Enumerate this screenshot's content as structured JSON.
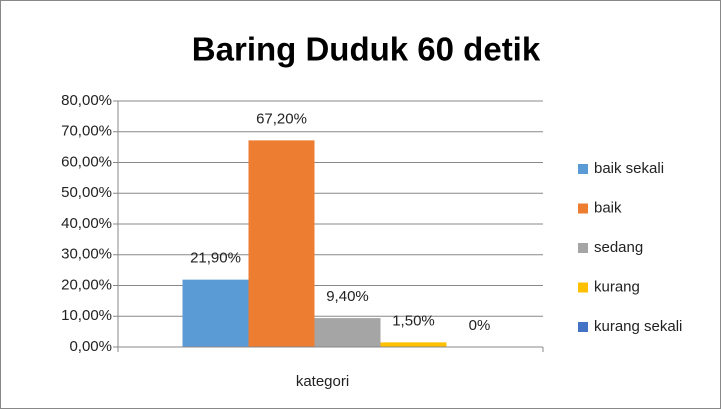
{
  "chart_data": {
    "type": "bar",
    "title": "Baring Duduk 60 detik",
    "categories": [
      "kategori"
    ],
    "series": [
      {
        "name": "baik sekali",
        "color": "#5b9bd5",
        "values": [
          21.9
        ],
        "value_labels": [
          "21,90%"
        ]
      },
      {
        "name": "baik",
        "color": "#ed7d31",
        "values": [
          67.2
        ],
        "value_labels": [
          "67,20%"
        ]
      },
      {
        "name": "sedang",
        "color": "#a5a5a5",
        "values": [
          9.4
        ],
        "value_labels": [
          "9,40%"
        ]
      },
      {
        "name": "kurang",
        "color": "#ffc000",
        "values": [
          1.5
        ],
        "value_labels": [
          "1,50%"
        ]
      },
      {
        "name": "kurang sekali",
        "color": "#4472c4",
        "values": [
          0
        ],
        "value_labels": [
          "0%"
        ]
      }
    ],
    "ylim": [
      0,
      80
    ],
    "yticks": [
      {
        "value": 0,
        "label": "0,00%"
      },
      {
        "value": 10,
        "label": "10,00%"
      },
      {
        "value": 20,
        "label": "20,00%"
      },
      {
        "value": 30,
        "label": "30,00%"
      },
      {
        "value": 40,
        "label": "40,00%"
      },
      {
        "value": 50,
        "label": "50,00%"
      },
      {
        "value": 60,
        "label": "60,00%"
      },
      {
        "value": 70,
        "label": "70,00%"
      },
      {
        "value": 80,
        "label": "80,00%"
      }
    ],
    "grid": true,
    "legend": "right"
  }
}
